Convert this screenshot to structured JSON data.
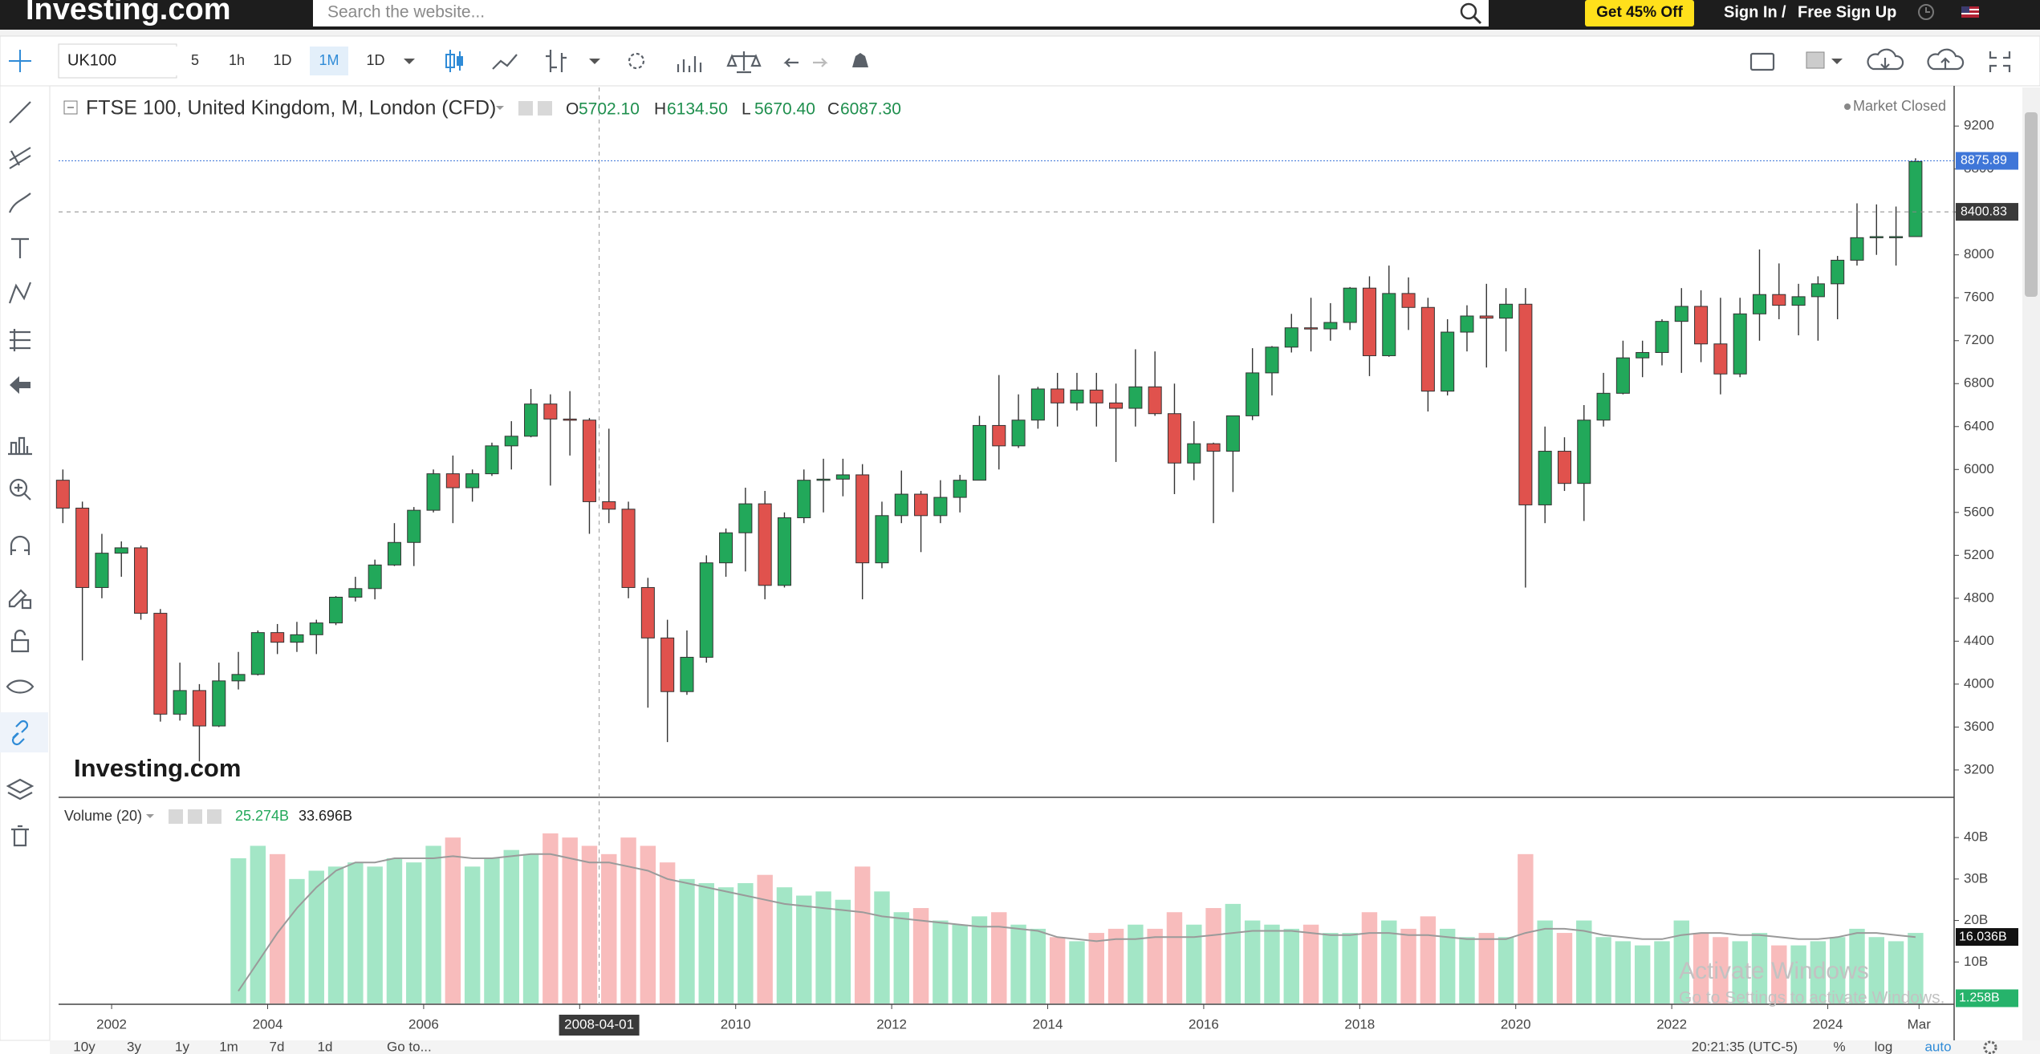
{
  "header": {
    "logo": "Investing.com",
    "search_placeholder": "Search the website...",
    "promo": "Get 45% Off",
    "sign_in": "Sign In",
    "separator": "/",
    "sign_up": "Free Sign Up"
  },
  "toolbar": {
    "symbol": "UK100",
    "intervals": [
      "5",
      "1h",
      "1D",
      "1M",
      "1D"
    ],
    "active_interval": 3
  },
  "footer": {
    "ranges": [
      "10y",
      "3y",
      "1y",
      "1m",
      "7d",
      "1d"
    ],
    "goto": "Go to...",
    "time": "20:21:35 (UTC-5)",
    "percent": "%",
    "log": "log",
    "auto": "auto"
  },
  "os_overlay": {
    "title": "Activate Windows",
    "subtitle": "Go to Settings to activate Windows."
  },
  "chart_data": [
    {
      "type": "candlestick",
      "title": "FTSE 100, United Kingdom, M, London (CFD)",
      "ohlc_legend": [
        {
          "key": "O",
          "label": "5702.10"
        },
        {
          "key": "H",
          "label": "6134.50"
        },
        {
          "key": "L",
          "label": "5670.40"
        },
        {
          "key": "C",
          "label": "6087.30"
        }
      ],
      "status": "Market Closed",
      "watermark": "Investing.com",
      "x": [
        2001.375,
        2001.625,
        2001.875,
        2002.125,
        2002.375,
        2002.625,
        2002.875,
        2003.125,
        2003.375,
        2003.625,
        2003.875,
        2004.125,
        2004.375,
        2004.625,
        2004.875,
        2005.125,
        2005.375,
        2005.625,
        2005.875,
        2006.125,
        2006.375,
        2006.625,
        2006.875,
        2007.125,
        2007.375,
        2007.625,
        2007.875,
        2008.125,
        2008.375,
        2008.625,
        2008.875,
        2009.125,
        2009.375,
        2009.625,
        2009.875,
        2010.125,
        2010.375,
        2010.625,
        2010.875,
        2011.125,
        2011.375,
        2011.625,
        2011.875,
        2012.125,
        2012.375,
        2012.625,
        2012.875,
        2013.125,
        2013.375,
        2013.625,
        2013.875,
        2014.125,
        2014.375,
        2014.625,
        2014.875,
        2015.125,
        2015.375,
        2015.625,
        2015.875,
        2016.125,
        2016.375,
        2016.625,
        2016.875,
        2017.125,
        2017.375,
        2017.625,
        2017.875,
        2018.125,
        2018.375,
        2018.625,
        2018.875,
        2019.125,
        2019.375,
        2019.625,
        2019.875,
        2020.125,
        2020.375,
        2020.625,
        2020.875,
        2021.125,
        2021.375,
        2021.625,
        2021.875,
        2022.125,
        2022.375,
        2022.625,
        2022.875,
        2023.125,
        2023.375,
        2023.625,
        2023.875,
        2024.125,
        2024.375,
        2024.625,
        2024.875,
        2025.125
      ],
      "open": [
        5900,
        5640,
        4900,
        5220,
        5270,
        4660,
        3720,
        3940,
        3610,
        4030,
        4090,
        4480,
        4390,
        4460,
        4570,
        4810,
        4890,
        5110,
        5320,
        5620,
        5960,
        5830,
        5960,
        6220,
        6310,
        6610,
        6470,
        6460,
        5700,
        5630,
        4900,
        4430,
        3930,
        4250,
        5130,
        5410,
        5680,
        4920,
        5550,
        5900,
        5910,
        5950,
        5130,
        5570,
        5770,
        5570,
        5740,
        5900,
        6410,
        6220,
        6460,
        6750,
        6620,
        6740,
        6620,
        6570,
        6770,
        6520,
        6060,
        6240,
        6170,
        6500,
        6900,
        7140,
        7320,
        7310,
        7370,
        7690,
        7060,
        7640,
        7510,
        6730,
        7280,
        7430,
        7410,
        7540,
        5670,
        6170,
        5870,
        6460,
        6710,
        7040,
        7090,
        7380,
        7520,
        7170,
        6890,
        7450,
        7630,
        7530,
        7610,
        7730,
        7950,
        8160,
        8170,
        8170
      ],
      "high": [
        6000,
        5700,
        5400,
        5330,
        5290,
        4700,
        4200,
        4000,
        4200,
        4300,
        4500,
        4560,
        4580,
        4600,
        4820,
        5000,
        5160,
        5500,
        5650,
        6000,
        6130,
        6000,
        6250,
        6450,
        6750,
        6700,
        6730,
        6480,
        6380,
        5700,
        4990,
        4600,
        4500,
        5200,
        5450,
        5830,
        5800,
        5600,
        6000,
        6100,
        6100,
        6050,
        5700,
        5990,
        5800,
        5900,
        5950,
        6500,
        6880,
        6700,
        6770,
        6900,
        6900,
        6900,
        6800,
        7120,
        7100,
        6800,
        6450,
        6250,
        6500,
        7130,
        7150,
        7450,
        7600,
        7550,
        7700,
        7800,
        7900,
        7790,
        7600,
        7400,
        7530,
        7730,
        7690,
        7690,
        6400,
        6300,
        6600,
        6900,
        7200,
        7200,
        7400,
        7690,
        7670,
        7600,
        7600,
        8050,
        7920,
        7730,
        7800,
        7990,
        8480,
        8470,
        8450,
        8900
      ],
      "low": [
        5500,
        4220,
        4800,
        5000,
        4600,
        3650,
        3660,
        3280,
        3600,
        3950,
        4080,
        4280,
        4300,
        4280,
        4550,
        4770,
        4790,
        5100,
        5100,
        5600,
        5500,
        5700,
        5940,
        6000,
        6300,
        5850,
        6130,
        5400,
        5500,
        4800,
        3780,
        3460,
        3900,
        4200,
        5000,
        5050,
        4790,
        4900,
        5500,
        5600,
        5750,
        4790,
        5080,
        5500,
        5230,
        5500,
        5600,
        5900,
        6000,
        6200,
        6380,
        6400,
        6550,
        6400,
        6070,
        6400,
        6500,
        5770,
        5900,
        5500,
        5790,
        6460,
        6690,
        7090,
        7100,
        7200,
        7300,
        6870,
        7050,
        7300,
        6540,
        6690,
        7100,
        6950,
        7100,
        4900,
        5500,
        5800,
        5520,
        6400,
        6700,
        6860,
        6970,
        6900,
        7000,
        6700,
        6860,
        7200,
        7400,
        7250,
        7200,
        7400,
        7900,
        8000,
        7900,
        8170
      ],
      "close": [
        5640,
        4900,
        5220,
        5270,
        4660,
        3720,
        3940,
        3610,
        4030,
        4090,
        4480,
        4390,
        4460,
        4570,
        4810,
        4890,
        5110,
        5320,
        5620,
        5960,
        5830,
        5960,
        6220,
        6310,
        6610,
        6470,
        6460,
        5700,
        5630,
        4900,
        4430,
        3930,
        4250,
        5130,
        5410,
        5680,
        4920,
        5550,
        5900,
        5910,
        5950,
        5130,
        5570,
        5770,
        5570,
        5740,
        5900,
        6410,
        6220,
        6460,
        6750,
        6620,
        6740,
        6620,
        6570,
        6770,
        6520,
        6060,
        6240,
        6170,
        6500,
        6900,
        7140,
        7320,
        7310,
        7370,
        7690,
        7060,
        7640,
        7510,
        6730,
        7280,
        7430,
        7410,
        7540,
        5670,
        6170,
        5870,
        6460,
        6710,
        7040,
        7090,
        7380,
        7520,
        7170,
        6890,
        7450,
        7630,
        7530,
        7610,
        7730,
        7950,
        8160,
        8170,
        8170,
        8870
      ],
      "up_color": "#22a85a",
      "down_color": "#e0524d",
      "xlim": [
        2001.32,
        2025.62
      ],
      "ylim": [
        2960,
        9560
      ],
      "yticks": [
        3200,
        3600,
        4000,
        4400,
        4800,
        5200,
        5600,
        6000,
        6400,
        6800,
        7200,
        7600,
        8000,
        8400,
        8800,
        9200
      ],
      "last_price": {
        "value": 8875.89,
        "color": "#3f76d8"
      },
      "crosshair": {
        "x": {
          "value": 2008.25,
          "label": "2008-04-01"
        },
        "y": 8400.83
      }
    },
    {
      "type": "bar",
      "title": "Volume (20)",
      "legend_values": [
        "25.274B",
        "33.696B"
      ],
      "x": [
        2001.375,
        2001.625,
        2001.875,
        2002.125,
        2002.375,
        2002.625,
        2002.875,
        2003.125,
        2003.375,
        2003.625,
        2003.875,
        2004.125,
        2004.375,
        2004.625,
        2004.875,
        2005.125,
        2005.375,
        2005.625,
        2005.875,
        2006.125,
        2006.375,
        2006.625,
        2006.875,
        2007.125,
        2007.375,
        2007.625,
        2007.875,
        2008.125,
        2008.375,
        2008.625,
        2008.875,
        2009.125,
        2009.375,
        2009.625,
        2009.875,
        2010.125,
        2010.375,
        2010.625,
        2010.875,
        2011.125,
        2011.375,
        2011.625,
        2011.875,
        2012.125,
        2012.375,
        2012.625,
        2012.875,
        2013.125,
        2013.375,
        2013.625,
        2013.875,
        2014.125,
        2014.375,
        2014.625,
        2014.875,
        2015.125,
        2015.375,
        2015.625,
        2015.875,
        2016.125,
        2016.375,
        2016.625,
        2016.875,
        2017.125,
        2017.375,
        2017.625,
        2017.875,
        2018.125,
        2018.375,
        2018.625,
        2018.875,
        2019.125,
        2019.375,
        2019.625,
        2019.875,
        2020.125,
        2020.375,
        2020.625,
        2020.875,
        2021.125,
        2021.375,
        2021.625,
        2021.875,
        2022.125,
        2022.375,
        2022.625,
        2022.875,
        2023.125,
        2023.375,
        2023.625,
        2023.875,
        2024.125,
        2024.375,
        2024.625,
        2024.875,
        2025.125
      ],
      "values": [
        null,
        null,
        null,
        null,
        null,
        null,
        null,
        null,
        null,
        35,
        38,
        36,
        30,
        32,
        33,
        34,
        33,
        35,
        34,
        38,
        40,
        33,
        35,
        37,
        36,
        41,
        40,
        38,
        36,
        40,
        38,
        34,
        30,
        29,
        28,
        29,
        31,
        28,
        26,
        27,
        25,
        33,
        27,
        22,
        23,
        20,
        19,
        21,
        22,
        19,
        18,
        16,
        15,
        17,
        18,
        19,
        18,
        22,
        19,
        23,
        24,
        20,
        19,
        18,
        19,
        17,
        17,
        22,
        20,
        18,
        21,
        18,
        16,
        17,
        16,
        36,
        20,
        17,
        20,
        16,
        15,
        14,
        15,
        20,
        17,
        16,
        15,
        17,
        14,
        14,
        15,
        16,
        18,
        16,
        15,
        17
      ],
      "ma": [
        null,
        null,
        null,
        null,
        null,
        null,
        null,
        null,
        null,
        3,
        10,
        17,
        23,
        28,
        32,
        34,
        34,
        35,
        35,
        35,
        35.5,
        35,
        35,
        35.5,
        36,
        36,
        35,
        34,
        34,
        33,
        32,
        30,
        29,
        28,
        27,
        26,
        25,
        24,
        23.5,
        23,
        22.5,
        22,
        21,
        20.5,
        20,
        19.5,
        19,
        18.5,
        18.5,
        18,
        17.5,
        16,
        15.5,
        15,
        15.5,
        15.5,
        16,
        16,
        16,
        16.5,
        17,
        17.5,
        17.5,
        17.5,
        17,
        16.5,
        16.5,
        17,
        17,
        16.5,
        16.5,
        16,
        15.5,
        15.5,
        15.5,
        17,
        18,
        18,
        17.5,
        16.5,
        16,
        15.5,
        15.5,
        16.5,
        17,
        17,
        16.5,
        16.5,
        16,
        15.5,
        15.5,
        16,
        17,
        17,
        16.5,
        16
      ],
      "ma_color": "#9a9a9a",
      "up_color": "#a3e6c6",
      "down_color": "#f8bcbc",
      "xlim": [
        2001.32,
        2025.62
      ],
      "ylim": [
        0,
        49.5
      ],
      "yticks": [
        {
          "value": 10,
          "label": "10B"
        },
        {
          "value": 20,
          "label": "20B"
        },
        {
          "value": 30,
          "label": "30B"
        },
        {
          "value": 40,
          "label": "40B"
        }
      ],
      "xticks": [
        2002,
        2004,
        2006,
        2008,
        2010,
        2012,
        2014,
        2016,
        2018,
        2020,
        2022,
        2024,
        {
          "value": 2025.17,
          "label": "Mar"
        }
      ],
      "markers": [
        {
          "value": 16.036,
          "label": "16.036B",
          "color": "#111111"
        },
        {
          "value": 1.258,
          "label": "1.258B",
          "color": "#26b36b"
        }
      ]
    }
  ]
}
